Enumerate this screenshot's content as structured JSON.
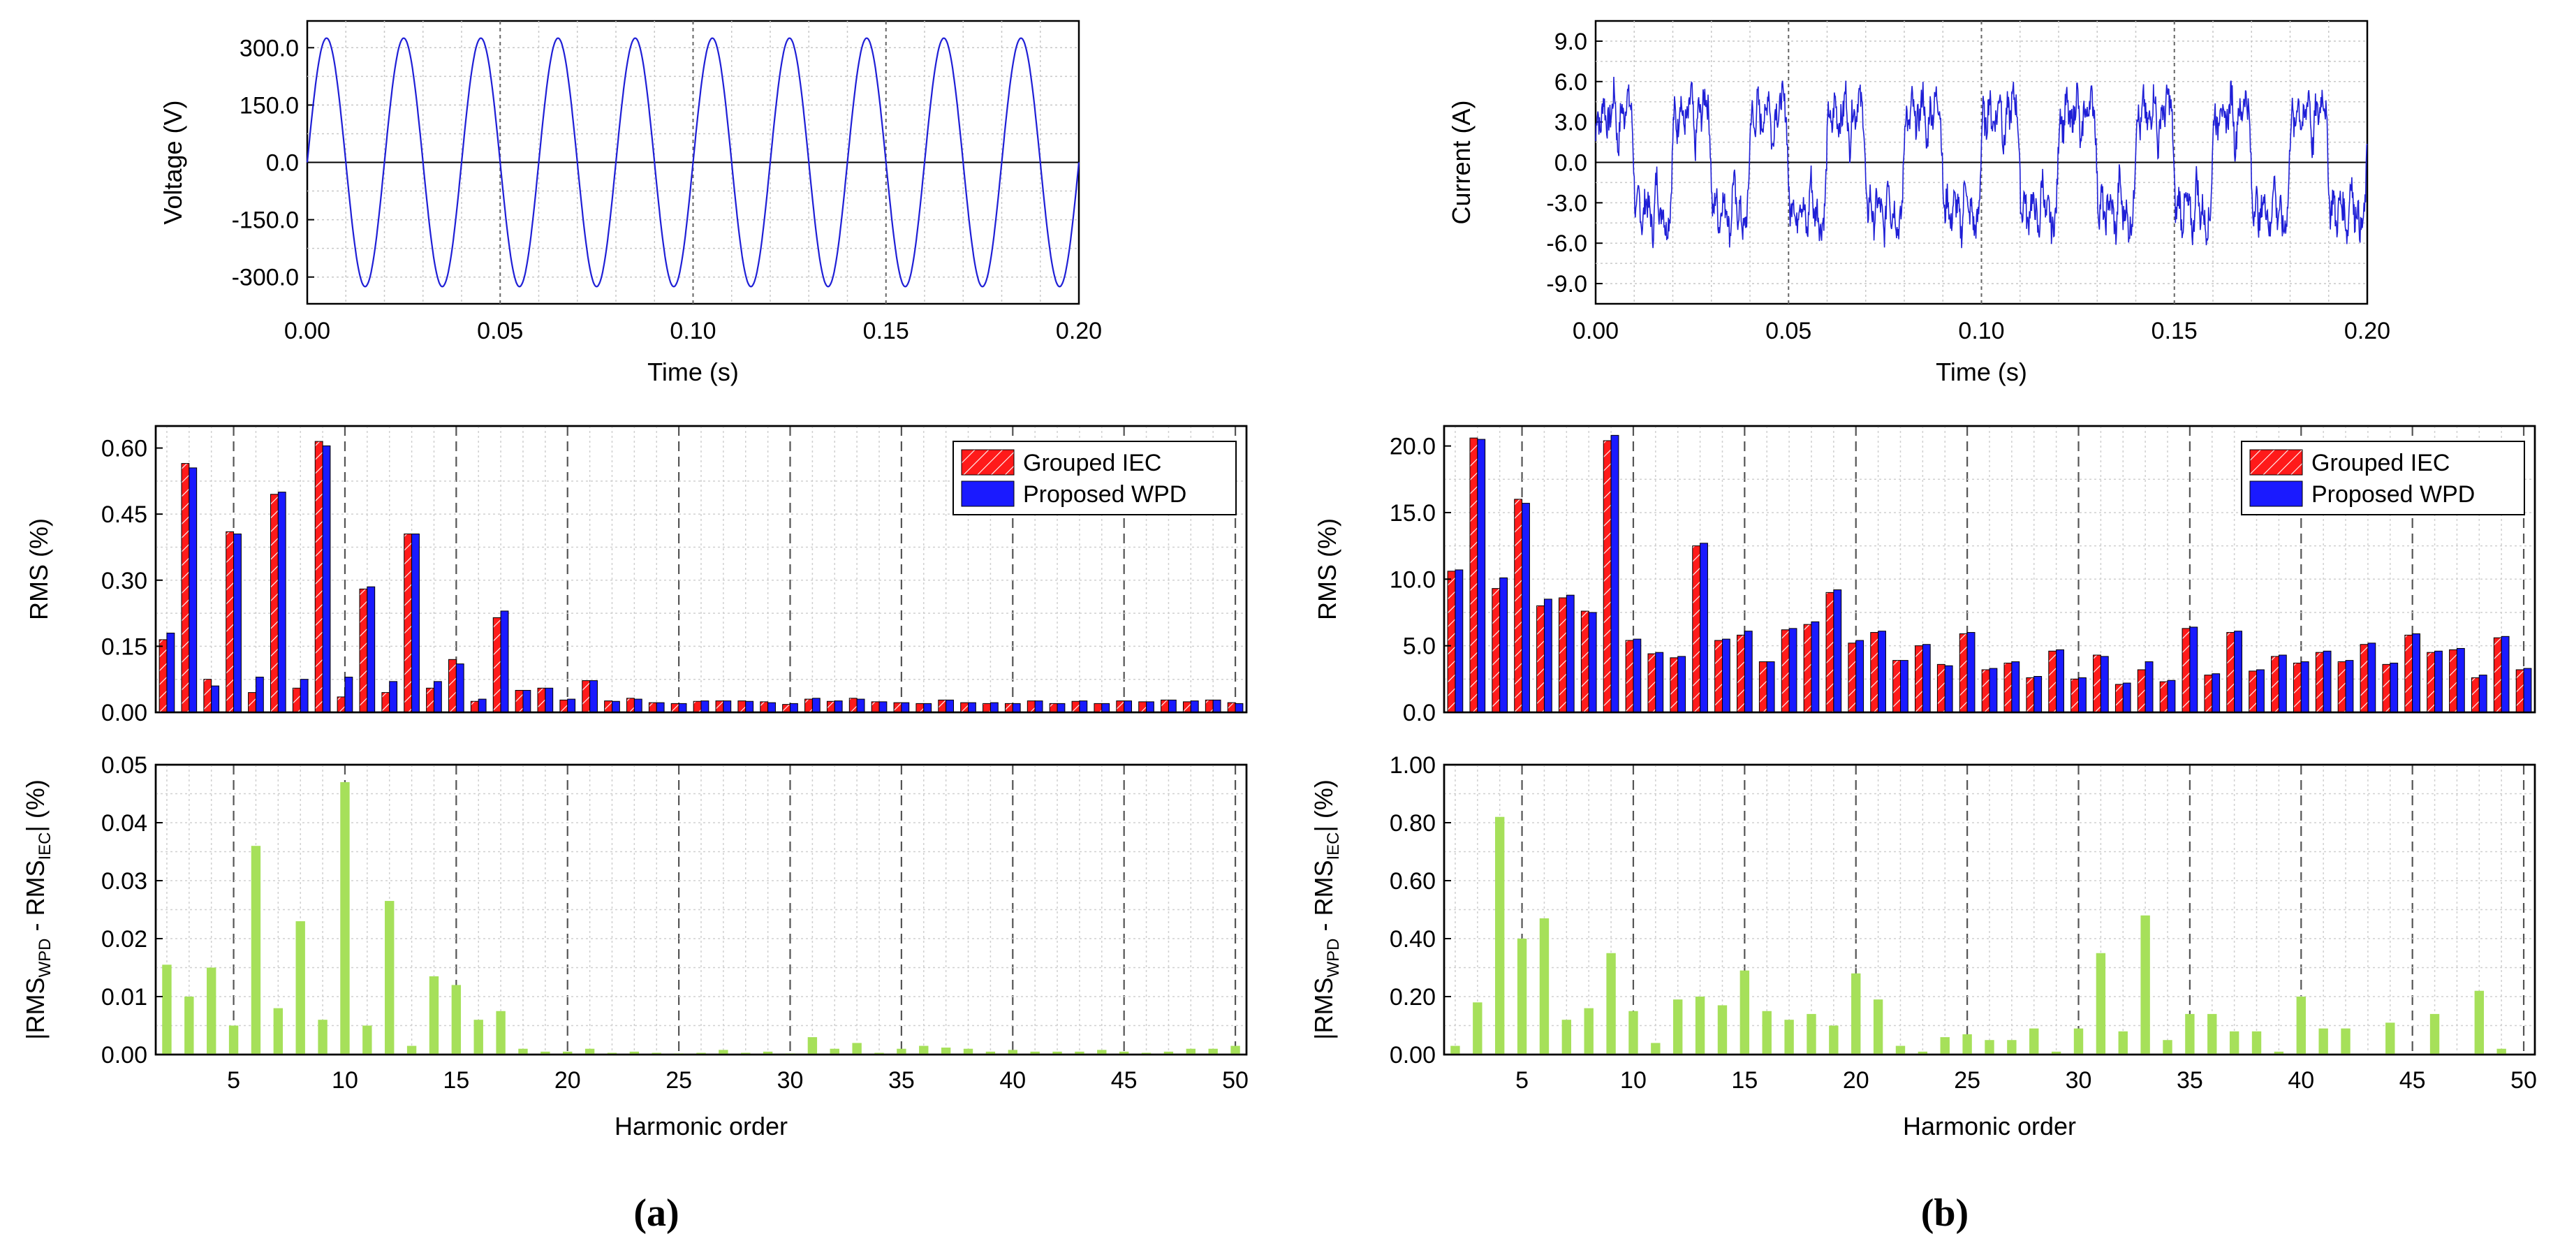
{
  "panels": [
    {
      "label": "(a)",
      "waveform": {
        "type": "line",
        "xlabel": "Time (s)",
        "ylabel": "Voltage (V)",
        "xlim": [
          0,
          0.2
        ],
        "ylim": [
          -370,
          370
        ],
        "xticks": [
          "0.00",
          "0.05",
          "0.10",
          "0.15",
          "0.20"
        ],
        "yticks": [
          "-300.0",
          "-150.0",
          "0.0",
          "150.0",
          "300.0"
        ],
        "ytick_values": [
          -300,
          -150,
          0,
          150,
          300
        ],
        "signal": "sine",
        "amplitude": 325,
        "frequency_hz": 50,
        "color": "#1f1fd6"
      },
      "rms": {
        "type": "bar",
        "ylabel": "RMS (%)",
        "ylim": [
          0,
          0.65
        ],
        "yticks": [
          "0.00",
          "0.15",
          "0.30",
          "0.45",
          "0.60"
        ],
        "ytick_values": [
          0,
          0.15,
          0.3,
          0.45,
          0.6
        ],
        "categories": [
          2,
          3,
          4,
          5,
          6,
          7,
          8,
          9,
          10,
          11,
          12,
          13,
          14,
          15,
          16,
          17,
          18,
          19,
          20,
          21,
          22,
          23,
          24,
          25,
          26,
          27,
          28,
          29,
          30,
          31,
          32,
          33,
          34,
          35,
          36,
          37,
          38,
          39,
          40,
          41,
          42,
          43,
          44,
          45,
          46,
          47,
          48,
          49,
          50
        ],
        "series": [
          {
            "name": "Grouped IEC",
            "color": "#ff1a1a",
            "values": [
              0.165,
              0.565,
              0.075,
              0.41,
              0.045,
              0.495,
              0.055,
              0.615,
              0.035,
              0.28,
              0.045,
              0.405,
              0.055,
              0.12,
              0.025,
              0.215,
              0.05,
              0.055,
              0.028,
              0.072,
              0.026,
              0.032,
              0.022,
              0.02,
              0.025,
              0.026,
              0.026,
              0.024,
              0.018,
              0.03,
              0.025,
              0.032,
              0.024,
              0.022,
              0.02,
              0.028,
              0.022,
              0.02,
              0.02,
              0.026,
              0.02,
              0.025,
              0.02,
              0.026,
              0.024,
              0.028,
              0.024,
              0.028,
              0.022
            ]
          },
          {
            "name": "Proposed WPD",
            "color": "#1a1aff",
            "values": [
              0.18,
              0.555,
              0.06,
              0.405,
              0.08,
              0.5,
              0.075,
              0.605,
              0.08,
              0.285,
              0.07,
              0.405,
              0.07,
              0.11,
              0.03,
              0.23,
              0.05,
              0.055,
              0.03,
              0.072,
              0.025,
              0.03,
              0.022,
              0.02,
              0.026,
              0.026,
              0.025,
              0.022,
              0.02,
              0.032,
              0.026,
              0.03,
              0.024,
              0.022,
              0.02,
              0.028,
              0.022,
              0.022,
              0.02,
              0.026,
              0.02,
              0.026,
              0.02,
              0.026,
              0.024,
              0.028,
              0.026,
              0.028,
              0.02
            ]
          }
        ]
      },
      "diff": {
        "type": "bar",
        "xlabel": "Harmonic order",
        "ylabel_main": "|RMS",
        "ylabel_sub1": "WPD",
        "ylabel_mid": " - RMS",
        "ylabel_sub2": "IEC",
        "ylabel_end": "| (%)",
        "ylim": [
          0,
          0.05
        ],
        "yticks": [
          "0.00",
          "0.01",
          "0.02",
          "0.03",
          "0.04",
          "0.05"
        ],
        "ytick_values": [
          0,
          0.01,
          0.02,
          0.03,
          0.04,
          0.05
        ],
        "xticks": [
          "5",
          "10",
          "15",
          "20",
          "25",
          "30",
          "35",
          "40",
          "45",
          "50"
        ],
        "color": "#a6e05a",
        "categories": [
          2,
          3,
          4,
          5,
          6,
          7,
          8,
          9,
          10,
          11,
          12,
          13,
          14,
          15,
          16,
          17,
          18,
          19,
          20,
          21,
          22,
          23,
          24,
          25,
          26,
          27,
          28,
          29,
          30,
          31,
          32,
          33,
          34,
          35,
          36,
          37,
          38,
          39,
          40,
          41,
          42,
          43,
          44,
          45,
          46,
          47,
          48,
          49,
          50
        ],
        "values": [
          0.0155,
          0.01,
          0.015,
          0.005,
          0.036,
          0.008,
          0.023,
          0.006,
          0.047,
          0.005,
          0.0265,
          0.0015,
          0.0135,
          0.012,
          0.006,
          0.0075,
          0.001,
          0.0005,
          0.0005,
          0.001,
          0.0003,
          0.0005,
          0.0003,
          0.0002,
          0.0003,
          0.0008,
          0.0003,
          0.0005,
          0.0002,
          0.003,
          0.001,
          0.002,
          0.0003,
          0.001,
          0.0015,
          0.0012,
          0.001,
          0.0005,
          0.0008,
          0.0005,
          0.0005,
          0.0005,
          0.0008,
          0.0005,
          0.0003,
          0.0005,
          0.001,
          0.001,
          0.0015
        ]
      }
    },
    {
      "label": "(b)",
      "waveform": {
        "type": "line",
        "xlabel": "Time (s)",
        "ylabel": "Current (A)",
        "xlim": [
          0,
          0.2
        ],
        "ylim": [
          -10.5,
          10.5
        ],
        "xticks": [
          "0.00",
          "0.05",
          "0.10",
          "0.15",
          "0.20"
        ],
        "yticks": [
          "-9.0",
          "-6.0",
          "-3.0",
          "0.0",
          "3.0",
          "6.0",
          "9.0"
        ],
        "ytick_values": [
          -9,
          -6,
          -3,
          0,
          3,
          6,
          9
        ],
        "signal": "distorted",
        "amplitude": 5,
        "frequency_hz": 50,
        "color": "#1f1fd6"
      },
      "rms": {
        "type": "bar",
        "ylabel": "RMS (%)",
        "ylim": [
          0,
          21.5
        ],
        "yticks": [
          "0.0",
          "5.0",
          "10.0",
          "15.0",
          "20.0"
        ],
        "ytick_values": [
          0,
          5,
          10,
          15,
          20
        ],
        "categories": [
          2,
          3,
          4,
          5,
          6,
          7,
          8,
          9,
          10,
          11,
          12,
          13,
          14,
          15,
          16,
          17,
          18,
          19,
          20,
          21,
          22,
          23,
          24,
          25,
          26,
          27,
          28,
          29,
          30,
          31,
          32,
          33,
          34,
          35,
          36,
          37,
          38,
          39,
          40,
          41,
          42,
          43,
          44,
          45,
          46,
          47,
          48,
          49,
          50
        ],
        "series": [
          {
            "name": "Grouped IEC",
            "color": "#ff1a1a",
            "values": [
              10.6,
              20.6,
              9.3,
              16.0,
              8.0,
              8.6,
              7.6,
              20.4,
              5.4,
              4.4,
              4.1,
              12.5,
              5.4,
              5.8,
              3.8,
              6.2,
              6.6,
              9.0,
              5.2,
              6.0,
              3.9,
              5.0,
              3.6,
              5.9,
              3.2,
              3.7,
              2.6,
              4.6,
              2.5,
              4.3,
              2.1,
              3.2,
              2.3,
              6.3,
              2.8,
              6.0,
              3.1,
              4.2,
              3.7,
              4.5,
              3.8,
              5.1,
              3.6,
              5.8,
              4.5,
              4.7,
              2.6,
              5.6,
              3.2
            ]
          },
          {
            "name": "Proposed WPD",
            "color": "#1a1aff",
            "values": [
              10.7,
              20.5,
              10.1,
              15.7,
              8.5,
              8.8,
              7.5,
              20.8,
              5.5,
              4.5,
              4.2,
              12.7,
              5.5,
              6.1,
              3.8,
              6.3,
              6.8,
              9.2,
              5.4,
              6.1,
              3.9,
              5.1,
              3.5,
              6.0,
              3.3,
              3.8,
              2.7,
              4.7,
              2.6,
              4.2,
              2.2,
              3.8,
              2.4,
              6.4,
              2.9,
              6.1,
              3.2,
              4.3,
              3.8,
              4.6,
              3.9,
              5.2,
              3.7,
              5.9,
              4.6,
              4.8,
              2.8,
              5.7,
              3.3
            ]
          }
        ]
      },
      "diff": {
        "type": "bar",
        "xlabel": "Harmonic order",
        "ylabel_main": "|RMS",
        "ylabel_sub1": "WPD",
        "ylabel_mid": " - RMS",
        "ylabel_sub2": "IEC",
        "ylabel_end": "| (%)",
        "ylim": [
          0,
          1.0
        ],
        "yticks": [
          "0.00",
          "0.20",
          "0.40",
          "0.60",
          "0.80",
          "1.00"
        ],
        "ytick_values": [
          0,
          0.2,
          0.4,
          0.6,
          0.8,
          1.0
        ],
        "xticks": [
          "5",
          "10",
          "15",
          "20",
          "25",
          "30",
          "35",
          "40",
          "45",
          "50"
        ],
        "color": "#a6e05a",
        "categories": [
          2,
          3,
          4,
          5,
          6,
          7,
          8,
          9,
          10,
          11,
          12,
          13,
          14,
          15,
          16,
          17,
          18,
          19,
          20,
          21,
          22,
          23,
          24,
          25,
          26,
          27,
          28,
          29,
          30,
          31,
          32,
          33,
          34,
          35,
          36,
          37,
          38,
          39,
          40,
          41,
          42,
          43,
          44,
          45,
          46,
          47,
          48,
          49,
          50
        ],
        "values": [
          0.03,
          0.18,
          0.82,
          0.4,
          0.47,
          0.12,
          0.16,
          0.35,
          0.15,
          0.04,
          0.19,
          0.2,
          0.17,
          0.29,
          0.15,
          0.12,
          0.14,
          0.1,
          0.28,
          0.19,
          0.03,
          0.01,
          0.06,
          0.07,
          0.05,
          0.05,
          0.09,
          0.01,
          0.09,
          0.35,
          0.08,
          0.48,
          0.05,
          0.14,
          0.14,
          0.08,
          0.08,
          0.01,
          0.2,
          0.09,
          0.09,
          0.0,
          0.11,
          0.0,
          0.14,
          0.0,
          0.22,
          0.02,
          0.0
        ]
      }
    }
  ]
}
